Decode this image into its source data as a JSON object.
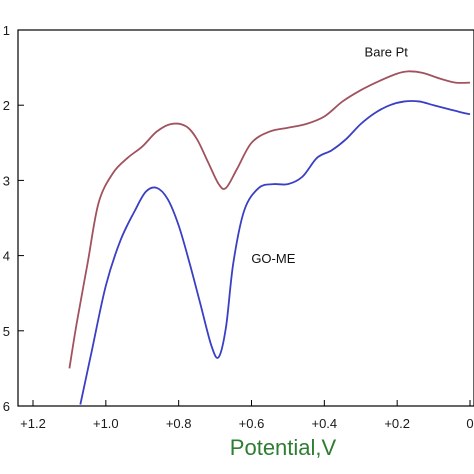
{
  "chart_data": {
    "type": "line",
    "title": "",
    "xlabel": "Potential,V",
    "ylabel": "",
    "xlim": [
      1.2,
      0.0
    ],
    "ylim": [
      1,
      6
    ],
    "x_ticks": [
      {
        "value": 1.2,
        "label": "+1.2"
      },
      {
        "value": 1.0,
        "label": "+1.0"
      },
      {
        "value": 0.8,
        "label": "+0.8"
      },
      {
        "value": 0.6,
        "label": "+0.6"
      },
      {
        "value": 0.4,
        "label": "+0.4"
      },
      {
        "value": 0.2,
        "label": "+0.2"
      },
      {
        "value": 0.0,
        "label": "0"
      }
    ],
    "y_ticks": [
      {
        "value": 1,
        "label": "1"
      },
      {
        "value": 2,
        "label": "2"
      },
      {
        "value": 3,
        "label": "3"
      },
      {
        "value": 4,
        "label": "4"
      },
      {
        "value": 5,
        "label": "5"
      },
      {
        "value": 6,
        "label": "6"
      }
    ],
    "grid": false,
    "series": [
      {
        "name": "Bare Pt",
        "color": "#a0525e",
        "x": [
          1.1,
          1.08,
          1.05,
          1.02,
          0.98,
          0.94,
          0.9,
          0.86,
          0.82,
          0.78,
          0.75,
          0.72,
          0.69,
          0.67,
          0.64,
          0.6,
          0.55,
          0.5,
          0.45,
          0.4,
          0.35,
          0.3,
          0.25,
          0.2,
          0.17,
          0.13,
          0.08,
          0.04,
          0.0
        ],
        "y": [
          5.5,
          4.9,
          4.1,
          3.3,
          2.9,
          2.7,
          2.55,
          2.35,
          2.25,
          2.28,
          2.45,
          2.75,
          3.05,
          3.1,
          2.85,
          2.5,
          2.35,
          2.3,
          2.25,
          2.15,
          1.95,
          1.8,
          1.68,
          1.58,
          1.55,
          1.57,
          1.65,
          1.7,
          1.7
        ]
      },
      {
        "name": "GO-ME",
        "color": "#3a3fc4",
        "x": [
          1.07,
          1.04,
          1.0,
          0.96,
          0.92,
          0.89,
          0.86,
          0.83,
          0.8,
          0.77,
          0.74,
          0.71,
          0.69,
          0.67,
          0.65,
          0.62,
          0.58,
          0.54,
          0.5,
          0.46,
          0.42,
          0.38,
          0.34,
          0.3,
          0.26,
          0.22,
          0.18,
          0.14,
          0.1,
          0.06,
          0.02,
          0.0
        ],
        "y": [
          5.98,
          5.3,
          4.4,
          3.8,
          3.4,
          3.15,
          3.1,
          3.25,
          3.6,
          4.1,
          4.65,
          5.2,
          5.35,
          4.95,
          4.1,
          3.4,
          3.1,
          3.05,
          3.05,
          2.95,
          2.7,
          2.6,
          2.45,
          2.25,
          2.1,
          2.0,
          1.95,
          1.95,
          2.0,
          2.05,
          2.1,
          2.12
        ]
      }
    ],
    "annotations": [
      {
        "text": "Bare Pt",
        "x": 0.23,
        "y": 1.35
      },
      {
        "text": "GO-ME",
        "x": 0.54,
        "y": 4.1
      }
    ]
  }
}
